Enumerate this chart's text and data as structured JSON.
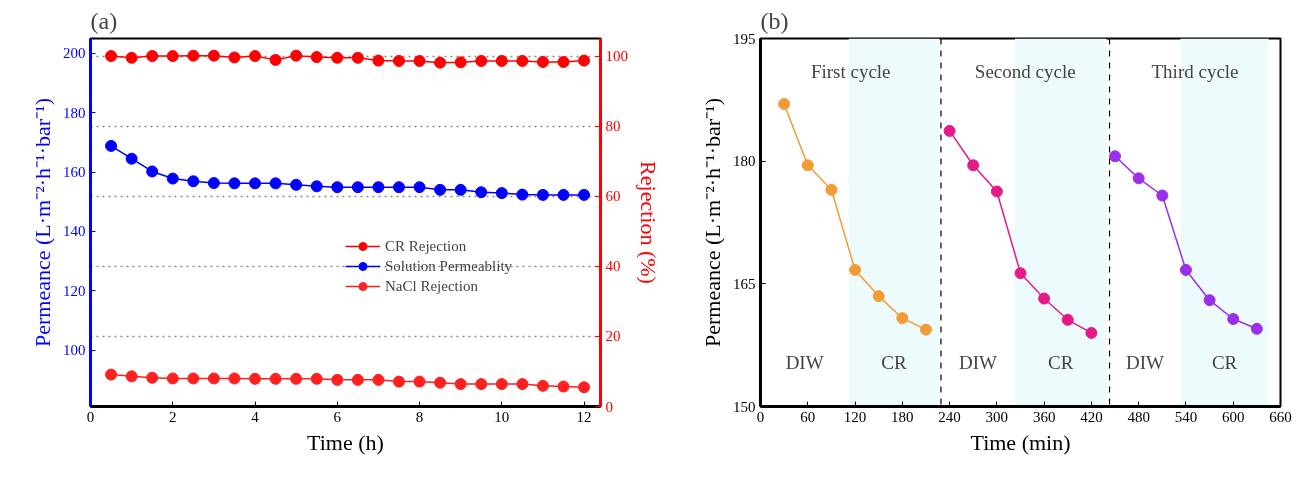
{
  "chart_data": [
    {
      "type": "line",
      "title": "(a)",
      "xlabel": "Time (h)",
      "ylabel": "Permeance (L·m⁻²·h⁻¹·bar⁻¹)",
      "y2label": "Rejection (%)",
      "x": [
        0.5,
        1,
        1.5,
        2,
        2.5,
        3,
        3.5,
        4,
        4.5,
        5,
        5.5,
        6,
        6.5,
        7,
        7.5,
        8,
        8.5,
        9,
        9.5,
        10,
        10.5,
        11,
        11.5,
        12
      ],
      "xlim": [
        0,
        12.4
      ],
      "xticks": [
        0,
        2,
        4,
        6,
        8,
        10,
        12
      ],
      "ylim": [
        81,
        205
      ],
      "yticks": [
        100,
        120,
        140,
        160,
        180,
        200
      ],
      "y2lim": [
        0,
        105
      ],
      "y2ticks": [
        0,
        20,
        40,
        60,
        80,
        100
      ],
      "grid": "y2",
      "legend": "right",
      "marker": "circle",
      "series": [
        {
          "name": "CR Rejection",
          "color": "#ff0000",
          "axis": "y2",
          "values": [
            100,
            99.5,
            100,
            100,
            100.1,
            100.1,
            99.6,
            100,
            98.9,
            100.1,
            99.7,
            99.5,
            99.5,
            98.7,
            98.6,
            98.6,
            98.1,
            98.2,
            98.6,
            98.6,
            98.6,
            98.3,
            98.3,
            98.7
          ]
        },
        {
          "name": "Solution Permeablity",
          "color": "#0000ff",
          "axis": "y",
          "values": [
            168.8,
            164.5,
            160.2,
            157.8,
            156.9,
            156.3,
            156.2,
            156.2,
            156.2,
            155.7,
            155.2,
            154.9,
            154.9,
            154.9,
            154.9,
            154.9,
            154.0,
            154.0,
            153.2,
            152.9,
            152.4,
            152.3,
            152.3,
            152.3
          ]
        },
        {
          "name": "NaCl Rejection",
          "color": "#ff2020",
          "axis": "y2",
          "values": [
            9.1,
            8.6,
            8.2,
            8.0,
            8.0,
            8.0,
            8.0,
            7.9,
            7.9,
            7.9,
            7.9,
            7.6,
            7.6,
            7.6,
            7.1,
            7.1,
            6.8,
            6.4,
            6.4,
            6.4,
            6.4,
            5.9,
            5.7,
            5.5
          ]
        }
      ]
    },
    {
      "type": "line",
      "title": "(b)",
      "xlabel": "Time (min)",
      "ylabel": "Permeance (L·m⁻²·h⁻¹·bar⁻¹)",
      "xlim": [
        0,
        660
      ],
      "xticks": [
        0,
        60,
        120,
        180,
        240,
        300,
        360,
        420,
        480,
        540,
        600,
        660
      ],
      "ylim": [
        150,
        195
      ],
      "yticks": [
        150,
        165,
        180,
        195
      ],
      "grid": false,
      "legend": false,
      "marker": "circle",
      "series": [
        {
          "color": "#f39c35",
          "x": [
            30,
            60,
            90,
            120,
            150,
            180,
            210
          ],
          "values": [
            187.0,
            179.5,
            176.5,
            166.7,
            163.5,
            160.8,
            159.4
          ]
        },
        {
          "color": "#e6198a",
          "x": [
            240,
            270,
            300,
            330,
            360,
            390,
            420
          ],
          "values": [
            183.7,
            179.5,
            176.3,
            166.3,
            163.2,
            160.6,
            159.0
          ]
        },
        {
          "color": "#9b30ea",
          "x": [
            450,
            480,
            510,
            540,
            570,
            600,
            630
          ],
          "values": [
            180.6,
            177.9,
            175.8,
            166.7,
            163.0,
            160.7,
            159.5
          ]
        }
      ],
      "bands": [
        {
          "axis": "x",
          "from": 112,
          "to": 227,
          "color": "#eefbfd"
        },
        {
          "axis": "x",
          "from": 323,
          "to": 439,
          "color": "#eefbfd"
        },
        {
          "axis": "x",
          "from": 533,
          "to": 645,
          "color": "#eefbfd"
        }
      ],
      "ref_lines": [
        {
          "axis": "x",
          "value": 229,
          "color": "#000000",
          "line_style": "dashed"
        },
        {
          "axis": "x",
          "value": 443,
          "color": "#000000",
          "line_style": "dashed"
        }
      ],
      "annotations": [
        "First cycle",
        "Second cycle",
        "Third cycle",
        "DIW",
        "CR",
        "DIW",
        "CR",
        "DIW",
        "CR"
      ]
    }
  ]
}
